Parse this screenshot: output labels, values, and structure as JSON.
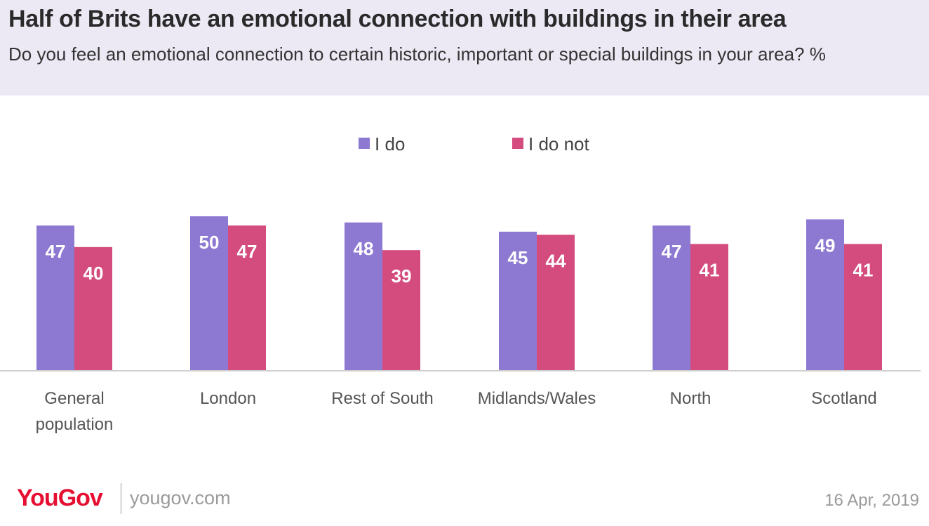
{
  "header": {
    "title": "Half of Brits have an emotional connection with buildings in their area",
    "subtitle": "Do you feel an emotional connection to certain historic, important or special buildings in your area? %"
  },
  "chart_data": {
    "type": "bar",
    "categories": [
      [
        "General",
        "population"
      ],
      [
        "London"
      ],
      [
        "Rest of South"
      ],
      [
        "Midlands/Wales"
      ],
      [
        "North"
      ],
      [
        "Scotland"
      ]
    ],
    "series": [
      {
        "name": "I do",
        "color": "#8e79d2",
        "values": [
          47,
          50,
          48,
          45,
          47,
          49
        ]
      },
      {
        "name": "I do not",
        "color": "#d44b7e",
        "values": [
          40,
          47,
          39,
          44,
          41,
          41
        ]
      }
    ],
    "legend_position": "top-center",
    "grid": false,
    "ylim": [
      0,
      50
    ]
  },
  "footer": {
    "logo_you": "You",
    "logo_gov": "Gov",
    "url": "yougov.com",
    "date": "16 Apr, 2019"
  }
}
